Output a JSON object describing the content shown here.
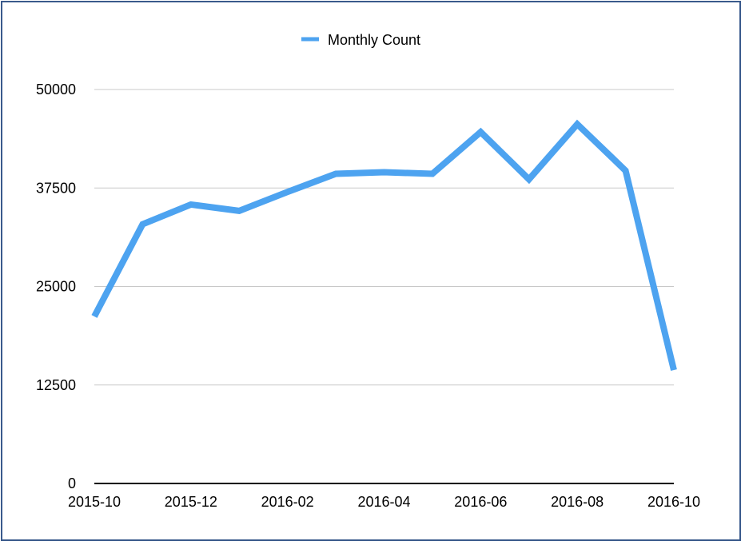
{
  "chart_data": {
    "type": "line",
    "title": "",
    "xlabel": "",
    "ylabel": "",
    "x": [
      "2015-10",
      "2015-11",
      "2015-12",
      "2016-01",
      "2016-02",
      "2016-03",
      "2016-04",
      "2016-05",
      "2016-06",
      "2016-07",
      "2016-08",
      "2016-09",
      "2016-10"
    ],
    "x_tick_labels": [
      "2015-10",
      "2015-12",
      "2016-02",
      "2016-04",
      "2016-06",
      "2016-08",
      "2016-10"
    ],
    "y_ticks": [
      0,
      12500,
      25000,
      37500,
      50000
    ],
    "ylim": [
      0,
      50000
    ],
    "grid": true,
    "legend_position": "top-center",
    "series": [
      {
        "name": "Monthly Count",
        "color": "#4da3f0",
        "values": [
          21200,
          32900,
          35400,
          34600,
          37000,
          39300,
          39500,
          39300,
          44600,
          38600,
          45600,
          39700,
          14400
        ]
      }
    ]
  }
}
